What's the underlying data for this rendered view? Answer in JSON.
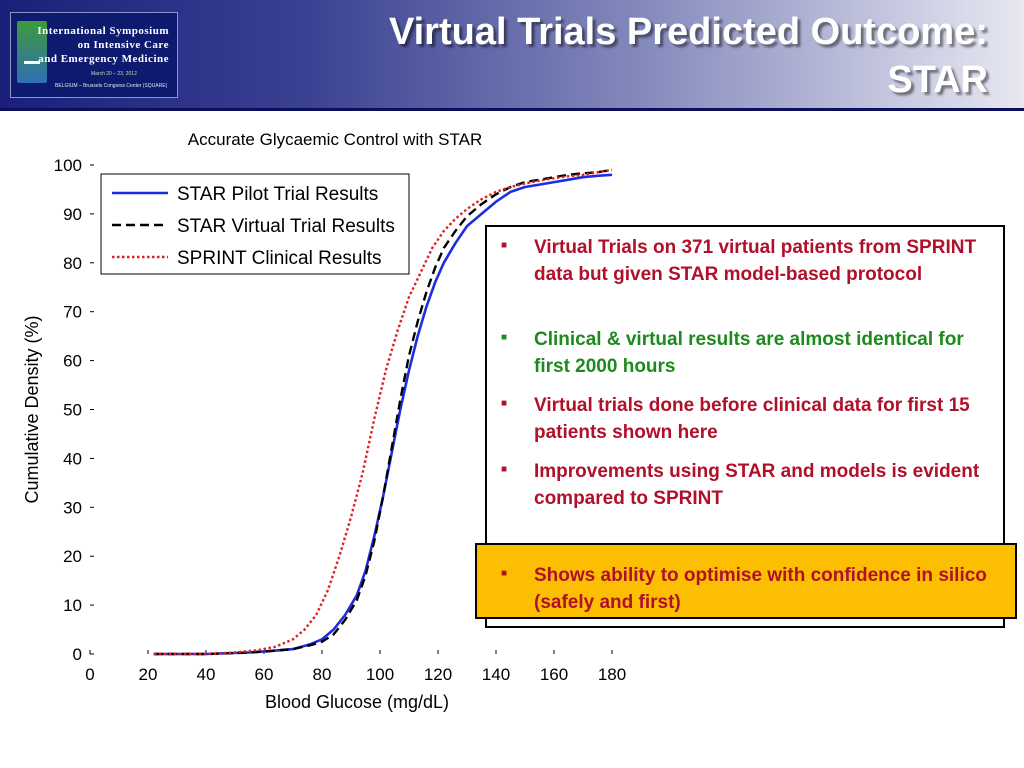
{
  "header": {
    "title": "Virtual Trials Predicted Outcome:\nSTAR",
    "logo": {
      "line1": "International Symposium",
      "line2": "on Intensive Care",
      "line3": "and Emergency Medicine",
      "date": "March 20 – 23, 2012",
      "venue": "BELGIUM – Brussels Congress Center (SQUARE)"
    }
  },
  "chart_data": {
    "type": "line",
    "title": "Accurate Glycaemic Control with STAR",
    "xlabel": "Blood Glucose (mg/dL)",
    "ylabel": "Cumulative Density (%)",
    "xlim": [
      0,
      180
    ],
    "ylim": [
      0,
      100
    ],
    "x_ticks": [
      "0",
      "20",
      "40",
      "60",
      "80",
      "100",
      "120",
      "140",
      "160",
      "180"
    ],
    "y_ticks": [
      "0",
      "10",
      "20",
      "30",
      "40",
      "50",
      "60",
      "70",
      "80",
      "90",
      "100"
    ],
    "grid": false,
    "legend_position": "top-left",
    "series": [
      {
        "name": "STAR Pilot Trial Results",
        "style": "solid",
        "color": "#1f2de0",
        "x": [
          22,
          40,
          55,
          62,
          70,
          76,
          80,
          84,
          88,
          92,
          95,
          98,
          101,
          104,
          107,
          110,
          113,
          116,
          119,
          122,
          126,
          130,
          135,
          140,
          145,
          150,
          155,
          160,
          165,
          170,
          175,
          180
        ],
        "y": [
          0,
          0,
          0.3,
          0.6,
          1,
          2,
          3,
          5,
          8,
          12,
          17,
          24,
          32,
          41,
          50,
          58,
          65,
          71,
          76,
          80,
          84,
          87.5,
          90,
          92.5,
          94.5,
          95.5,
          96,
          96.5,
          97,
          97.5,
          97.8,
          98
        ]
      },
      {
        "name": "STAR Virtual Trial Results",
        "style": "dashed",
        "color": "#000000",
        "x": [
          22,
          40,
          55,
          62,
          70,
          76,
          80,
          84,
          88,
          92,
          95,
          98,
          101,
          104,
          107,
          110,
          113,
          116,
          119,
          122,
          126,
          130,
          135,
          140,
          145,
          150,
          155,
          160,
          165,
          170,
          175,
          180
        ],
        "y": [
          0,
          0,
          0.3,
          0.6,
          1,
          1.8,
          2.5,
          4,
          7,
          11,
          16,
          23,
          32,
          42,
          52,
          61,
          68,
          74,
          79,
          83,
          86.5,
          89.5,
          92,
          94,
          95.5,
          96.5,
          97,
          97.5,
          98,
          98.3,
          98.5,
          99
        ]
      },
      {
        "name": "SPRINT Clinical Results",
        "style": "dotted",
        "color": "#dd2222",
        "x": [
          22,
          40,
          50,
          58,
          64,
          70,
          74,
          78,
          82,
          86,
          90,
          94,
          98,
          102,
          106,
          110,
          114,
          118,
          122,
          126,
          130,
          135,
          140,
          145,
          150,
          155,
          160,
          165,
          170,
          175,
          180
        ],
        "y": [
          0,
          0,
          0.3,
          0.8,
          1.5,
          3,
          5,
          8,
          13,
          20,
          28,
          37,
          48,
          58,
          66,
          73,
          78,
          83,
          86.5,
          89,
          91,
          93,
          94.5,
          95.5,
          96.2,
          96.8,
          97.3,
          97.7,
          98,
          98.5,
          99
        ]
      }
    ]
  },
  "notes": {
    "bullets": [
      {
        "text": "Virtual Trials on 371 virtual patients from SPRINT data but given STAR model-based protocol",
        "color": "red"
      },
      {
        "text": "Clinical & virtual results are almost identical for first 2000 hours",
        "color": "green"
      },
      {
        "text": "Virtual trials done before clinical data for first 15 patients shown here",
        "color": "red"
      },
      {
        "text": "Improvements using STAR and models is evident compared to SPRINT",
        "color": "red"
      }
    ],
    "highlight": "Shows ability to optimise with confidence in silico (safely and first)",
    "bullet_symbol": "■"
  }
}
